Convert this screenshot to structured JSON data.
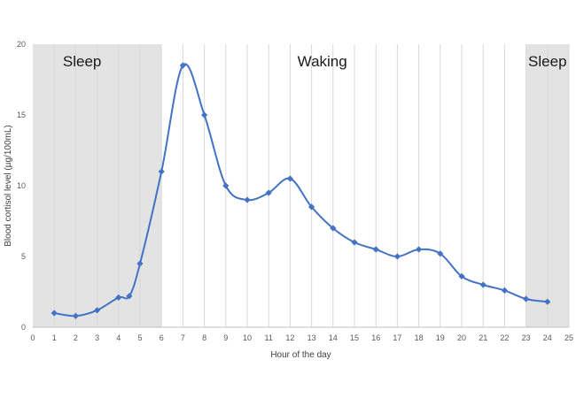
{
  "chart_data": {
    "type": "line",
    "title": "",
    "xlabel": "Hour of the day",
    "ylabel": "Blood cortisol level (µg/100mL)",
    "xlim": [
      0,
      25
    ],
    "ylim": [
      0,
      20
    ],
    "x_ticks": [
      0,
      1,
      2,
      3,
      4,
      5,
      6,
      7,
      8,
      9,
      10,
      11,
      12,
      13,
      14,
      15,
      16,
      17,
      18,
      19,
      20,
      21,
      22,
      23,
      24,
      25
    ],
    "y_ticks": [
      0,
      5,
      10,
      15,
      20
    ],
    "grid": "vertical",
    "legend": "none",
    "colors": {
      "line": "#4472c4",
      "shade": "#e3e3e3",
      "grid": "#d9d9d9"
    },
    "shaded_regions": [
      {
        "label": "Sleep",
        "x_start": 0,
        "x_end": 6
      },
      {
        "label": "Sleep",
        "x_start": 23,
        "x_end": 25
      }
    ],
    "annotations": [
      {
        "text": "Sleep",
        "x": 2.3,
        "y": 18.8
      },
      {
        "text": "Waking",
        "x": 13.5,
        "y": 18.8
      },
      {
        "text": "Sleep",
        "x": 24,
        "y": 18.8
      }
    ],
    "series": [
      {
        "x": [
          1,
          2,
          3,
          4,
          4.5,
          5,
          6,
          7,
          8,
          9,
          10,
          11,
          12,
          13,
          14,
          15,
          16,
          17,
          18,
          19,
          20,
          21,
          22,
          23,
          24
        ],
        "y": [
          1.0,
          0.8,
          1.2,
          2.1,
          2.2,
          4.5,
          11.0,
          18.5,
          15.0,
          10.0,
          9.0,
          9.5,
          10.5,
          8.5,
          7.0,
          6.0,
          5.5,
          5.0,
          5.5,
          5.2,
          3.6,
          3.0,
          2.6,
          2.0,
          1.8
        ]
      }
    ]
  }
}
